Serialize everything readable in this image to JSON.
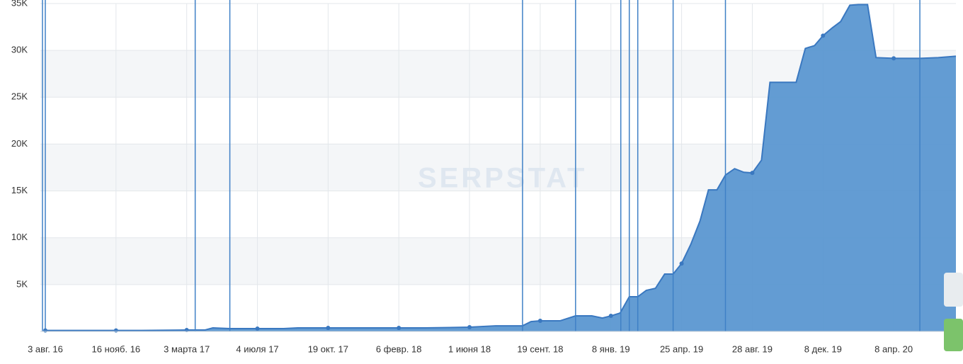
{
  "chart_data": {
    "type": "area",
    "watermark": "SERPSTAT",
    "x": [
      0,
      0.36,
      0.66,
      1.0,
      1.36,
      2.0,
      2.26,
      2.37,
      2.61,
      3.0,
      3.37,
      3.57,
      4.0,
      5.0,
      5.37,
      6.0,
      6.37,
      6.75,
      6.87,
      7.0,
      7.28,
      7.5,
      7.73,
      7.88,
      8.0,
      8.13,
      8.26,
      8.38,
      8.5,
      8.63,
      8.76,
      8.88,
      9.0,
      9.13,
      9.26,
      9.38,
      9.5,
      9.62,
      9.75,
      9.88,
      10.0,
      10.13,
      10.25,
      10.38,
      10.62,
      10.75,
      10.88,
      11.0,
      11.13,
      11.25,
      11.38,
      11.5,
      11.63,
      11.75,
      12.0,
      12.38,
      12.63,
      12.88
    ],
    "values": [
      100,
      100,
      100,
      100,
      100,
      150,
      150,
      380,
      300,
      300,
      300,
      380,
      380,
      380,
      380,
      450,
      600,
      600,
      1050,
      1130,
      1130,
      1660,
      1660,
      1430,
      1660,
      1960,
      3700,
      3700,
      4380,
      4600,
      6120,
      6120,
      7250,
      9290,
      11780,
      15110,
      15110,
      16690,
      17370,
      16990,
      16920,
      18280,
      26590,
      26590,
      26590,
      30210,
      30510,
      31570,
      32400,
      33080,
      34820,
      34890,
      34890,
      29230,
      29150,
      29150,
      29230,
      29380
    ],
    "color": "#5b97d1",
    "line_color": "#3a78c0",
    "marker_color": "#3f80c6",
    "markers": [
      -0.04,
      0,
      2.12,
      2.61,
      6.75,
      7.5,
      8.14,
      8.26,
      8.38,
      8.88,
      9.62,
      12.37
    ],
    "xlim": [
      -0.07,
      12.88
    ],
    "xticks": [
      {
        "value": 0,
        "label": "3 авг. 16"
      },
      {
        "value": 1,
        "label": "16 нояб. 16"
      },
      {
        "value": 2,
        "label": "3 марта 17"
      },
      {
        "value": 3,
        "label": "4 июля 17"
      },
      {
        "value": 4,
        "label": "19 окт. 17"
      },
      {
        "value": 5,
        "label": "6 февр. 18"
      },
      {
        "value": 6,
        "label": "1 июня 18"
      },
      {
        "value": 7,
        "label": "19 сент. 18"
      },
      {
        "value": 8,
        "label": "8 янв. 19"
      },
      {
        "value": 9,
        "label": "25 апр. 19"
      },
      {
        "value": 10,
        "label": "28 авг. 19"
      },
      {
        "value": 11,
        "label": "8 дек. 19"
      },
      {
        "value": 12,
        "label": "8 апр. 20"
      }
    ],
    "ylim": [
      0,
      35000
    ],
    "yticks": [
      {
        "value": 5000,
        "label": "5K"
      },
      {
        "value": 10000,
        "label": "10K"
      },
      {
        "value": 15000,
        "label": "15K"
      },
      {
        "value": 20000,
        "label": "20K"
      },
      {
        "value": 25000,
        "label": "25K"
      },
      {
        "value": 30000,
        "label": "30K"
      },
      {
        "value": 35000,
        "label": "35K"
      }
    ],
    "grid": true
  }
}
